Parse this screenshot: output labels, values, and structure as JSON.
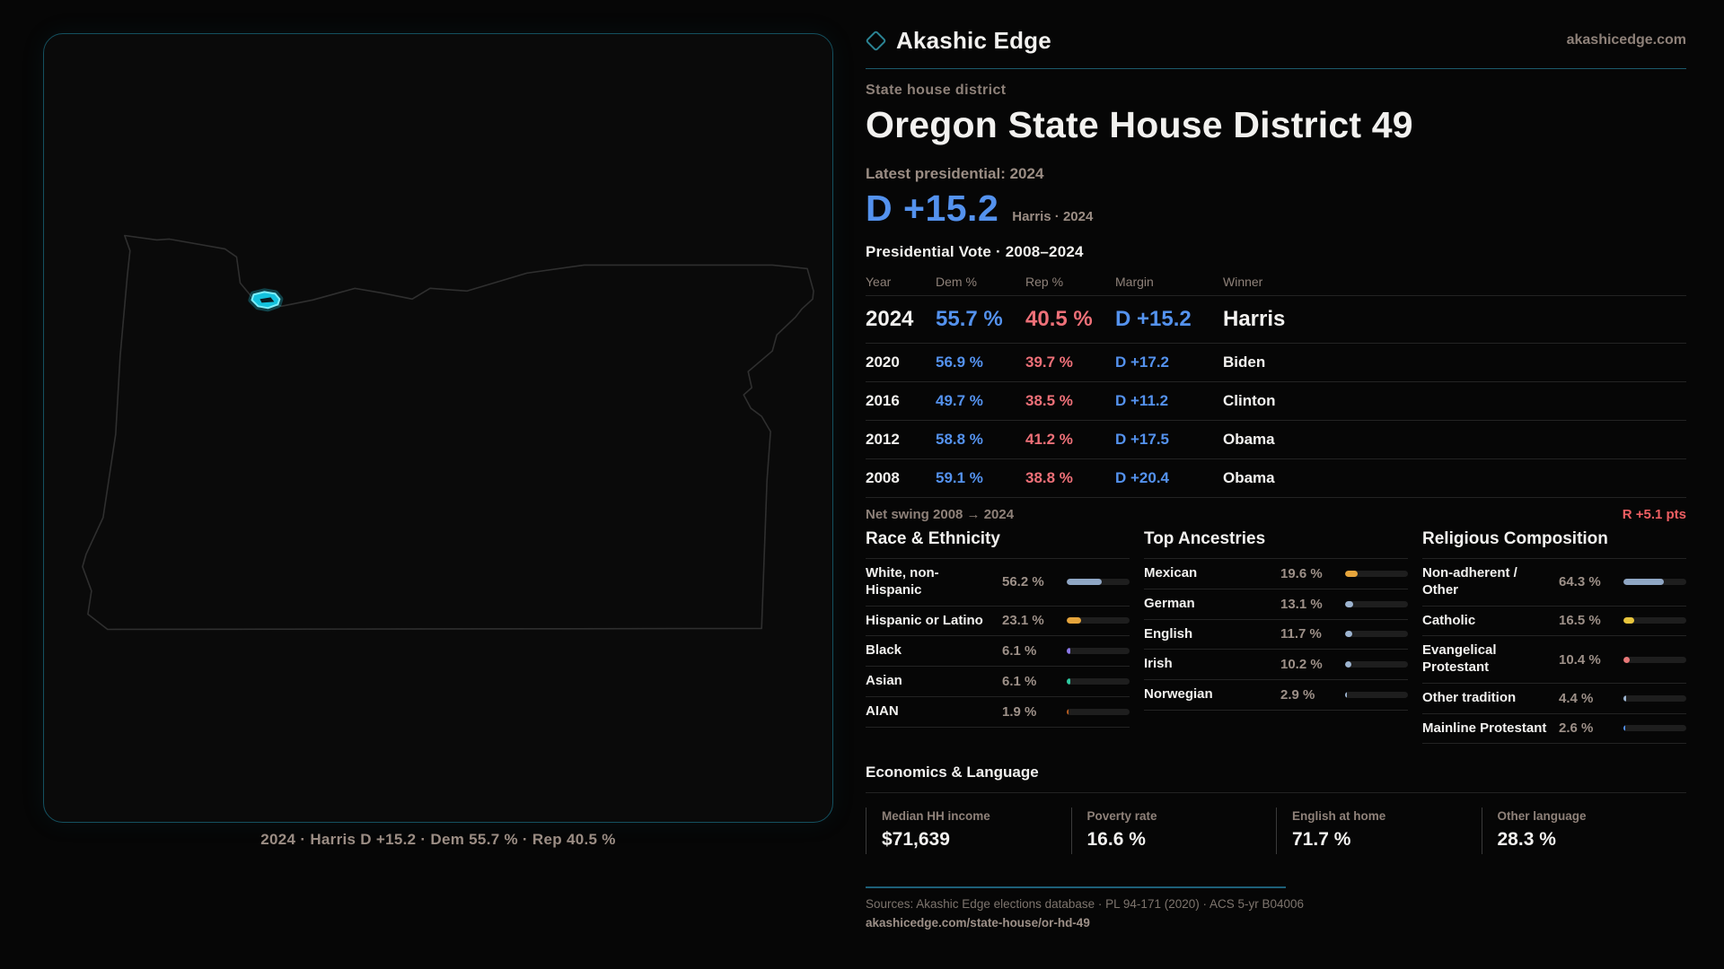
{
  "brand": {
    "name": "Akashic Edge",
    "site": "akashicedge.com"
  },
  "page": {
    "kicker": "State house district",
    "title": "Oregon State House District 49"
  },
  "headline": {
    "label": "Latest presidential: 2024",
    "margin": "D +15.2",
    "sub": "Harris · 2024"
  },
  "results": {
    "title": "Presidential Vote · 2008–2024",
    "columns": [
      "Year",
      "Dem %",
      "Rep %",
      "Margin",
      "Winner"
    ],
    "rows": [
      {
        "year": "2024",
        "dem": "55.7 %",
        "rep": "40.5 %",
        "margin": "D +15.2",
        "winner": "Harris",
        "featured": true
      },
      {
        "year": "2020",
        "dem": "56.9 %",
        "rep": "39.7 %",
        "margin": "D +17.2",
        "winner": "Biden",
        "featured": false
      },
      {
        "year": "2016",
        "dem": "49.7 %",
        "rep": "38.5 %",
        "margin": "D +11.2",
        "winner": "Clinton",
        "featured": false
      },
      {
        "year": "2012",
        "dem": "58.8 %",
        "rep": "41.2 %",
        "margin": "D +17.5",
        "winner": "Obama",
        "featured": false
      },
      {
        "year": "2008",
        "dem": "59.1 %",
        "rep": "38.8 %",
        "margin": "D +20.4",
        "winner": "Obama",
        "featured": false
      }
    ]
  },
  "net_swing": {
    "label": "Net swing 2008 → 2024",
    "value": "R +5.1 pts"
  },
  "demographics": [
    {
      "title": "Race & Ethnicity",
      "rows": [
        {
          "label": "White, non-Hispanic",
          "value": "56.2 %",
          "pct": 56.2,
          "color": "#8fa6c4"
        },
        {
          "label": "Hispanic or Latino",
          "value": "23.1 %",
          "pct": 23.1,
          "color": "#e6a53c"
        },
        {
          "label": "Black",
          "value": "6.1 %",
          "pct": 6.1,
          "color": "#8b78e8"
        },
        {
          "label": "Asian",
          "value": "6.1 %",
          "pct": 6.1,
          "color": "#2ec9a0"
        },
        {
          "label": "AIAN",
          "value": "1.9 %",
          "pct": 1.9,
          "color": "#b85c1e"
        }
      ]
    },
    {
      "title": "Top Ancestries",
      "rows": [
        {
          "label": "Mexican",
          "value": "19.6 %",
          "pct": 19.6,
          "color": "#e6a53c"
        },
        {
          "label": "German",
          "value": "13.1 %",
          "pct": 13.1,
          "color": "#9db4d0"
        },
        {
          "label": "English",
          "value": "11.7 %",
          "pct": 11.7,
          "color": "#9db4d0"
        },
        {
          "label": "Irish",
          "value": "10.2 %",
          "pct": 10.2,
          "color": "#9db4d0"
        },
        {
          "label": "Norwegian",
          "value": "2.9 %",
          "pct": 2.9,
          "color": "#9db4d0"
        }
      ]
    },
    {
      "title": "Religious Composition",
      "rows": [
        {
          "label": "Non-adherent / Other",
          "value": "64.3 %",
          "pct": 64.3,
          "color": "#8fa6c4"
        },
        {
          "label": "Catholic",
          "value": "16.5 %",
          "pct": 16.5,
          "color": "#e8c53c"
        },
        {
          "label": "Evangelical Protestant",
          "value": "10.4 %",
          "pct": 10.4,
          "color": "#e87878"
        },
        {
          "label": "Other tradition",
          "value": "4.4 %",
          "pct": 4.4,
          "color": "#9db4d0"
        },
        {
          "label": "Mainline Protestant",
          "value": "2.6 %",
          "pct": 2.6,
          "color": "#5492ee"
        }
      ]
    }
  ],
  "economics": {
    "title": "Economics & Language",
    "stats": [
      {
        "label": "Median HH income",
        "value": "$71,639"
      },
      {
        "label": "Poverty rate",
        "value": "16.6 %"
      },
      {
        "label": "English at home",
        "value": "71.7 %"
      },
      {
        "label": "Other language",
        "value": "28.3 %"
      }
    ]
  },
  "footer": {
    "sources": "Sources: Akashic Edge elections database · PL 94-171 (2020) · ACS 5-yr B04006",
    "url": "akashicedge.com/state-house/or-hd-49"
  },
  "map": {
    "caption": "2024 · Harris D +15.2 · Dem 55.7 % · Rep 40.5 %",
    "highlight_color": "#22d3ee"
  },
  "colors": {
    "dem": "#5492ee",
    "rep": "#ee7078",
    "accent": "#1c5a6b"
  }
}
